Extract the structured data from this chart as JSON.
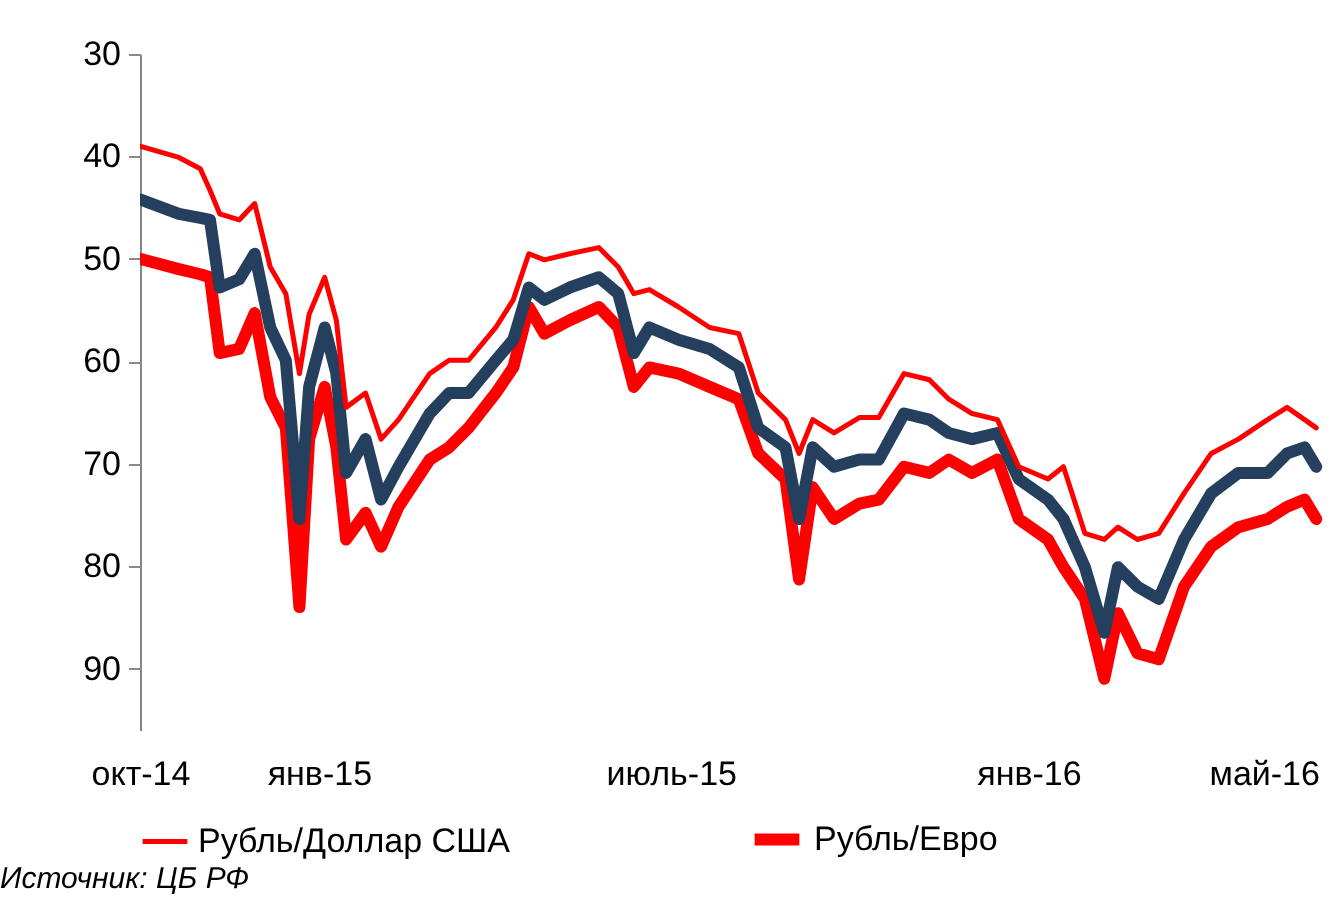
{
  "chart_data": {
    "type": "line",
    "x": [
      "2014-10-01",
      "2014-10-21",
      "2014-11-01",
      "2014-11-06",
      "2014-11-11",
      "2014-11-21",
      "2014-11-29",
      "2014-12-07",
      "2014-12-15",
      "2014-12-22",
      "2014-12-27",
      "2015-01-04",
      "2015-01-10",
      "2015-01-15",
      "2015-01-25",
      "2015-02-02",
      "2015-02-11",
      "2015-02-27",
      "2015-03-09",
      "2015-03-19",
      "2015-04-02",
      "2015-04-11",
      "2015-04-19",
      "2015-04-27",
      "2015-05-10",
      "2015-05-25",
      "2015-06-04",
      "2015-06-12",
      "2015-06-20",
      "2015-07-05",
      "2015-07-21",
      "2015-08-05",
      "2015-08-15",
      "2015-08-29",
      "2015-09-05",
      "2015-09-12",
      "2015-09-23",
      "2015-10-06",
      "2015-10-16",
      "2015-10-29",
      "2015-11-11",
      "2015-11-21",
      "2015-12-03",
      "2015-12-16",
      "2015-12-27",
      "2016-01-11",
      "2016-01-19",
      "2016-01-30",
      "2016-02-09",
      "2016-02-16",
      "2016-02-26",
      "2016-03-08",
      "2016-03-21",
      "2016-04-04",
      "2016-04-18",
      "2016-05-03",
      "2016-05-13",
      "2016-05-22",
      "2016-05-28"
    ],
    "series": [
      {
        "name": "Рубль/Доллар США",
        "color": "#ff0000",
        "values": [
          39.0,
          40.1,
          41.2,
          43.3,
          45.6,
          46.2,
          44.6,
          50.8,
          53.4,
          61.2,
          55.4,
          51.8,
          56.0,
          64.5,
          63.1,
          67.6,
          65.7,
          61.2,
          59.9,
          59.9,
          56.7,
          54.0,
          49.5,
          50.1,
          49.5,
          48.9,
          50.8,
          53.4,
          53.0,
          54.7,
          56.7,
          57.3,
          63.1,
          65.7,
          69.0,
          65.7,
          67.0,
          65.5,
          65.5,
          61.2,
          61.8,
          63.7,
          65.1,
          65.7,
          70.3,
          71.5,
          70.3,
          76.8,
          77.4,
          76.2,
          77.4,
          76.8,
          72.9,
          69.0,
          67.6,
          65.7,
          64.5,
          65.7,
          66.5
        ]
      },
      {
        "name": "Рубль/Евро",
        "color": "#ff0000",
        "values": [
          50.0,
          51.0,
          51.5,
          51.8,
          59.2,
          58.8,
          55.3,
          63.5,
          66.5,
          84.0,
          67.6,
          62.5,
          68.4,
          77.4,
          74.8,
          78.1,
          74.2,
          69.6,
          68.4,
          66.5,
          63.1,
          60.6,
          54.7,
          57.3,
          56.0,
          54.7,
          56.7,
          62.5,
          60.6,
          61.2,
          62.5,
          63.7,
          69.0,
          71.5,
          81.3,
          72.3,
          75.4,
          73.9,
          73.5,
          70.3,
          70.9,
          69.6,
          70.9,
          69.6,
          75.4,
          77.4,
          80.1,
          83.2,
          91.0,
          84.6,
          88.5,
          89.1,
          82.0,
          78.1,
          76.2,
          75.4,
          74.2,
          73.5,
          75.4
        ]
      },
      {
        "color": "#253f5f",
        "values": [
          44.2,
          45.6,
          46.0,
          46.2,
          52.8,
          52.0,
          49.5,
          56.7,
          59.9,
          75.4,
          62.5,
          56.7,
          61.2,
          70.9,
          67.6,
          73.5,
          70.3,
          65.1,
          63.1,
          63.1,
          59.9,
          57.9,
          52.8,
          54.0,
          52.8,
          51.8,
          53.4,
          59.2,
          56.7,
          57.9,
          58.8,
          60.6,
          66.5,
          68.4,
          75.4,
          68.4,
          70.3,
          69.6,
          69.6,
          65.1,
          65.7,
          67.0,
          67.6,
          67.0,
          71.5,
          73.5,
          75.4,
          80.1,
          86.5,
          80.1,
          82.0,
          83.2,
          77.4,
          72.9,
          70.9,
          70.9,
          69.0,
          68.4,
          70.3
        ]
      }
    ],
    "xlim": [
      "2014-10-01",
      "2016-06-01"
    ],
    "xticks": [
      {
        "value": "2014-10-01",
        "label": "окт-14"
      },
      {
        "value": "2015-01-01",
        "label": "янв-15"
      },
      {
        "value": "2015-07-01",
        "label": "июль-15"
      },
      {
        "value": "2016-01-01",
        "label": "янв-16"
      },
      {
        "value": "2016-05-01",
        "label": "май-16"
      }
    ],
    "ylim": [
      96,
      30
    ],
    "yticks": [
      30,
      40,
      50,
      60,
      70,
      80,
      90
    ],
    "grid": false,
    "legend": "bottom",
    "annotations": [
      "Источник: ЦБ РФ"
    ]
  }
}
